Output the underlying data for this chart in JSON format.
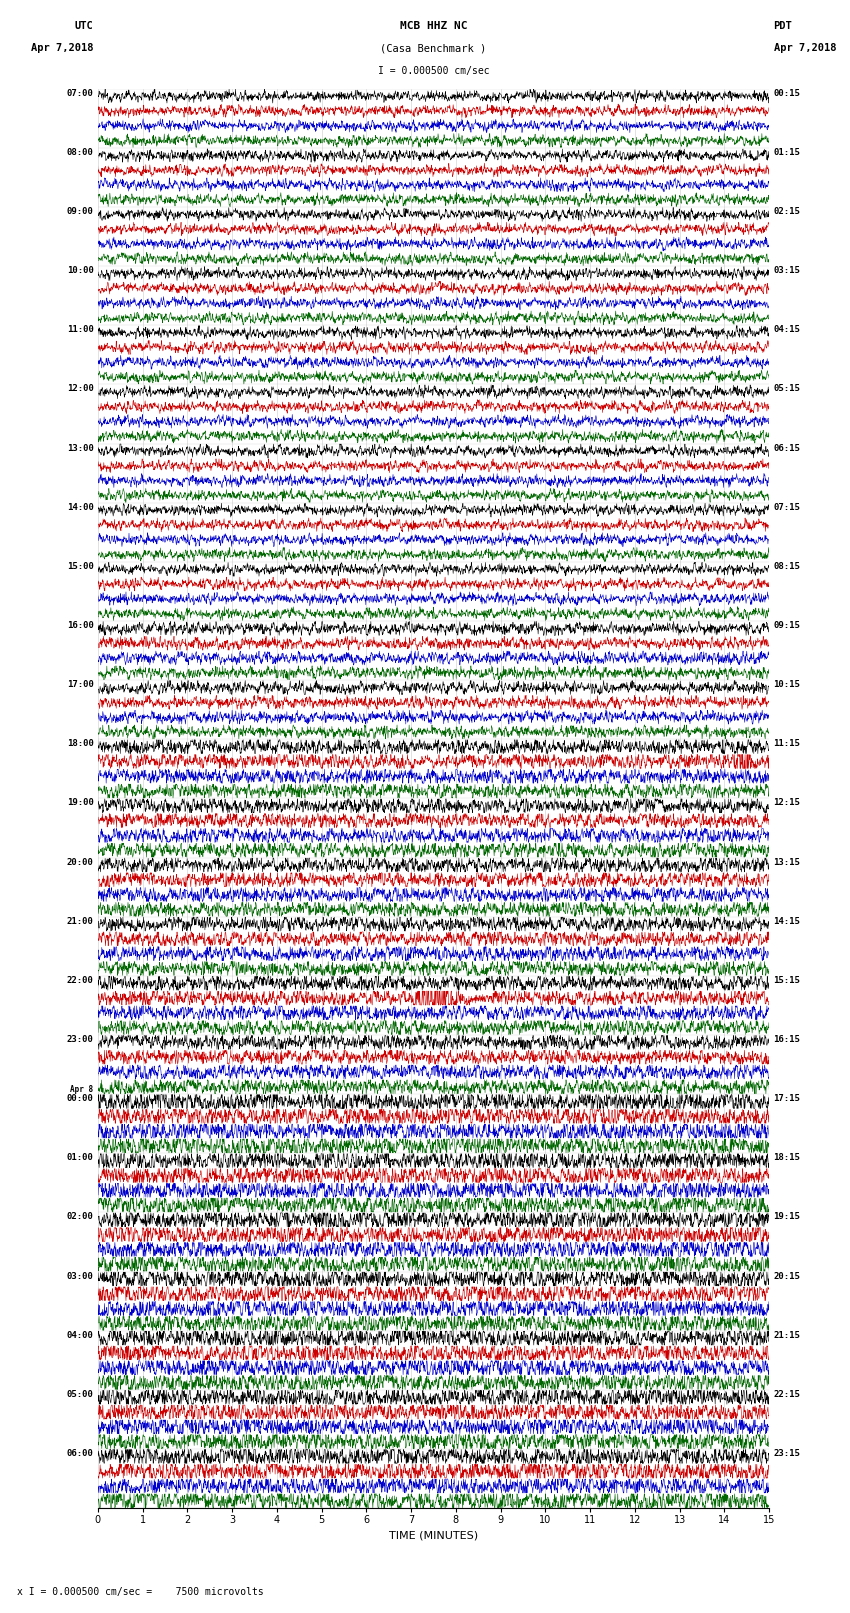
{
  "title_line1": "MCB HHZ NC",
  "title_line2": "(Casa Benchmark )",
  "title_line3": "I = 0.000500 cm/sec",
  "utc_label": "UTC",
  "utc_date": "Apr 7,2018",
  "pdt_label": "PDT",
  "pdt_date": "Apr 7,2018",
  "xlabel": "TIME (MINUTES)",
  "footer": "x I = 0.000500 cm/sec =    7500 microvolts",
  "bg_color": "#ffffff",
  "trace_colors": [
    "#000000",
    "#cc0000",
    "#0000cc",
    "#006600"
  ],
  "left_labels": [
    "07:00",
    "08:00",
    "09:00",
    "10:00",
    "11:00",
    "12:00",
    "13:00",
    "14:00",
    "15:00",
    "16:00",
    "17:00",
    "18:00",
    "19:00",
    "20:00",
    "21:00",
    "22:00",
    "23:00",
    "Apr 8",
    "01:00",
    "02:00",
    "03:00",
    "04:00",
    "05:00",
    "06:00"
  ],
  "left_labels2": [
    "",
    "",
    "",
    "",
    "",
    "",
    "",
    "",
    "",
    "",
    "",
    "",
    "",
    "",
    "",
    "",
    "",
    "00:00",
    "",
    "",
    "",
    "",
    "",
    ""
  ],
  "right_labels": [
    "00:15",
    "01:15",
    "02:15",
    "03:15",
    "04:15",
    "05:15",
    "06:15",
    "07:15",
    "08:15",
    "09:15",
    "10:15",
    "11:15",
    "12:15",
    "13:15",
    "14:15",
    "15:15",
    "16:15",
    "17:15",
    "18:15",
    "19:15",
    "20:15",
    "21:15",
    "22:15",
    "23:15"
  ],
  "n_rows": 24,
  "traces_per_row": 4,
  "xmax": 15,
  "grid_color": "#999999",
  "grid_alpha": 0.5
}
